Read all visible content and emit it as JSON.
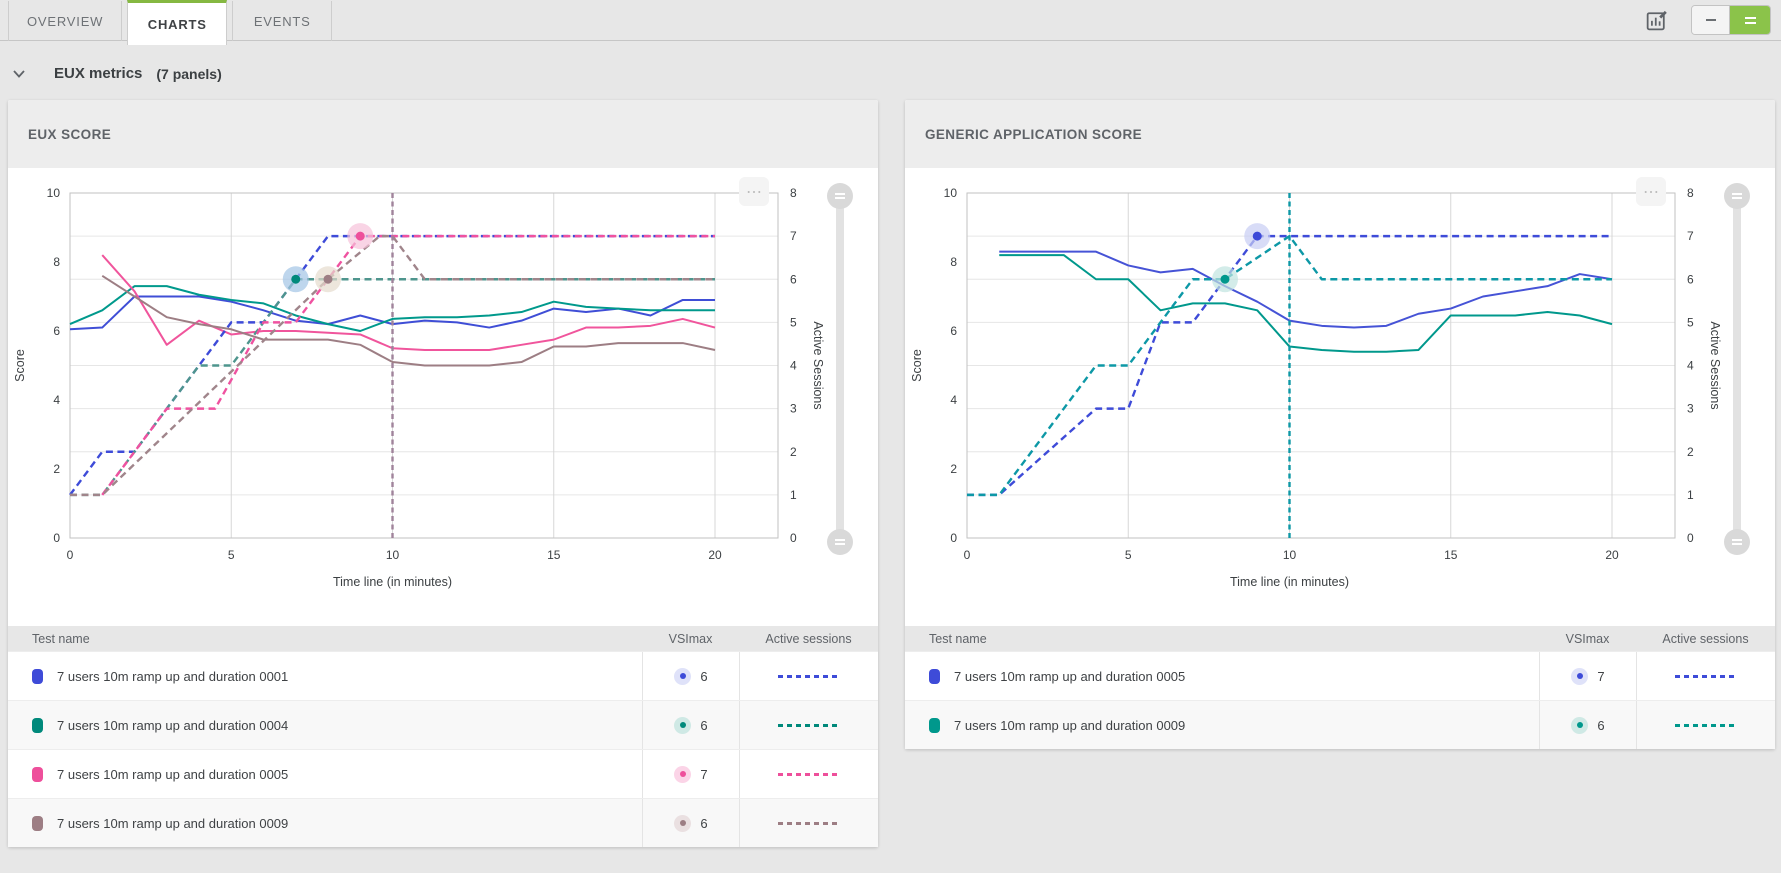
{
  "tabs": [
    {
      "label": "OVERVIEW",
      "active": false
    },
    {
      "label": "CHARTS",
      "active": true
    },
    {
      "label": "EVENTS",
      "active": false
    }
  ],
  "toolbar": {
    "icons": {
      "edit_charts": "chart-edit-icon",
      "compact_view": "minus-icon",
      "expanded_view": "equals-icon"
    }
  },
  "icons": {
    "section_chevron": "chevron-down-icon",
    "panel_menu": "ellipsis-icon",
    "panel_menu_glyph": "⋯",
    "slider_handle": "grip-icon"
  },
  "section": {
    "title": "EUX metrics",
    "count": "(7 panels)"
  },
  "colors": {
    "accent_green": "#8bc34a",
    "tab_green": "#85b841",
    "page_bg": "#e7e7e7",
    "panel_header_bg": "#ededed",
    "blue": "#3f4ed6",
    "teal": "#00897b",
    "pink": "#ee4f9b",
    "mauve": "#9d7e84"
  },
  "panels": [
    {
      "title": "EUX SCORE",
      "table": {
        "headers": {
          "name": "Test name",
          "vsimax": "VSImax",
          "sessions": "Active sessions"
        },
        "rows": [
          {
            "name": "7 users 10m ramp up and duration 0001",
            "color": "#3e4bd8",
            "tint": "#dfe2f9",
            "vsimax": "6"
          },
          {
            "name": "7 users 10m ramp up and duration 0004",
            "color": "#00897b",
            "tint": "#cfe9e5",
            "vsimax": "6"
          },
          {
            "name": "7 users 10m ramp up and duration 0005",
            "color": "#ee4f9b",
            "tint": "#fbd4e7",
            "vsimax": "7"
          },
          {
            "name": "7 users 10m ramp up and duration 0009",
            "color": "#9d7e84",
            "tint": "#eae0e1",
            "vsimax": "6"
          }
        ]
      }
    },
    {
      "title": "GENERIC APPLICATION SCORE",
      "table": {
        "headers": {
          "name": "Test name",
          "vsimax": "VSImax",
          "sessions": "Active sessions"
        },
        "rows": [
          {
            "name": "7 users 10m ramp up and duration 0005",
            "color": "#3e4bd8",
            "tint": "#dfe2f9",
            "vsimax": "7"
          },
          {
            "name": "7 users 10m ramp up and duration 0009",
            "color": "#00988c",
            "tint": "#cfe9e5",
            "vsimax": "6"
          }
        ]
      }
    }
  ],
  "chart_data": [
    {
      "type": "line",
      "title": "EUX SCORE",
      "xlabel": "Time line (in minutes)",
      "ylabel": "Score",
      "y2label": "Active Sessions",
      "xticks": [
        0,
        5,
        10,
        15,
        20
      ],
      "yticks": [
        0,
        2,
        4,
        6,
        8,
        10
      ],
      "y2ticks": [
        0,
        1,
        2,
        3,
        4,
        5,
        6,
        7,
        8
      ],
      "xlim": [
        0,
        21.9
      ],
      "ylim": [
        0,
        10
      ],
      "y2lim": [
        0,
        8
      ],
      "grid": true,
      "vline": {
        "x": 10,
        "color": "#a0839b"
      },
      "series": [
        {
          "name": "7 users 10m ramp up and duration 0001 score",
          "axis": "y1",
          "dash": false,
          "color": "#3f4ed6",
          "x": [
            0,
            1,
            2,
            3,
            4,
            5,
            6,
            7,
            8,
            9,
            10,
            11,
            12,
            13,
            14,
            15,
            16,
            17,
            18,
            19,
            20
          ],
          "y": [
            6.05,
            6.1,
            7.0,
            7.0,
            7.0,
            6.85,
            6.6,
            6.3,
            6.2,
            6.45,
            6.2,
            6.3,
            6.25,
            6.1,
            6.3,
            6.65,
            6.55,
            6.65,
            6.45,
            6.9,
            6.9
          ]
        },
        {
          "name": "7 users 10m ramp up and duration 0004 score",
          "axis": "y1",
          "dash": false,
          "color": "#00998c",
          "x": [
            0,
            1,
            2,
            3,
            4,
            5,
            6,
            7,
            8,
            9,
            10,
            11,
            12,
            13,
            14,
            15,
            16,
            17,
            18,
            19,
            20
          ],
          "y": [
            6.2,
            6.6,
            7.3,
            7.3,
            7.05,
            6.9,
            6.8,
            6.45,
            6.2,
            6.0,
            6.35,
            6.4,
            6.4,
            6.45,
            6.55,
            6.85,
            6.7,
            6.65,
            6.6,
            6.6,
            6.6
          ]
        },
        {
          "name": "7 users 10m ramp up and duration 0005 score",
          "axis": "y1",
          "dash": false,
          "color": "#f0559c",
          "x": [
            1,
            2,
            3,
            4,
            5,
            6,
            7,
            8,
            9,
            10,
            11,
            12,
            13,
            14,
            15,
            16,
            17,
            18,
            19,
            20
          ],
          "y": [
            8.2,
            7.15,
            5.6,
            6.3,
            5.9,
            6.0,
            6.0,
            5.95,
            5.9,
            5.5,
            5.45,
            5.45,
            5.45,
            5.6,
            5.75,
            6.1,
            6.1,
            6.15,
            6.35,
            6.1
          ]
        },
        {
          "name": "7 users 10m ramp up and duration 0009 score",
          "axis": "y1",
          "dash": false,
          "color": "#9d7e84",
          "x": [
            1,
            2,
            3,
            4,
            5,
            6,
            7,
            8,
            9,
            10,
            11,
            12,
            13,
            14,
            15,
            16,
            17,
            18,
            19,
            20
          ],
          "y": [
            7.6,
            7.0,
            6.4,
            6.2,
            6.05,
            5.75,
            5.75,
            5.75,
            5.6,
            5.1,
            5.0,
            5.0,
            5.0,
            5.1,
            5.55,
            5.55,
            5.65,
            5.65,
            5.65,
            5.45
          ]
        },
        {
          "name": "0001 active sessions",
          "axis": "y2",
          "dash": true,
          "color": "#3e4bd8",
          "x": [
            0,
            1,
            2,
            5,
            6,
            8,
            20
          ],
          "y": [
            1,
            2,
            2,
            5,
            5,
            7,
            7
          ]
        },
        {
          "name": "0004 active sessions",
          "axis": "y2",
          "dash": true,
          "color": "#4e958d",
          "x": [
            0,
            1,
            4,
            5,
            7,
            20
          ],
          "y": [
            1,
            1,
            4,
            4,
            6,
            6
          ]
        },
        {
          "name": "0005 active sessions",
          "axis": "y2",
          "dash": true,
          "color": "#ef52a0",
          "x": [
            1,
            2,
            3,
            4.5,
            6,
            7,
            9,
            20
          ],
          "y": [
            1,
            2,
            3,
            3,
            5,
            5,
            7,
            7
          ]
        },
        {
          "name": "0009 active sessions",
          "axis": "y2",
          "dash": true,
          "color": "#a0858b",
          "x": [
            0,
            1,
            8,
            9.6,
            10,
            11,
            20
          ],
          "y": [
            1,
            1,
            6,
            7,
            7,
            6,
            6
          ]
        }
      ],
      "markers": [
        {
          "x": 7,
          "y2": 6,
          "dot": "#00897b",
          "halo": "#a2c4e6"
        },
        {
          "x": 8,
          "y2": 6,
          "dot": "#9d7e84",
          "halo": "#e6dbcd"
        },
        {
          "x": 9,
          "y2": 7,
          "dot": "#ee4f9b",
          "halo": "#f6c2da"
        }
      ]
    },
    {
      "type": "line",
      "title": "GENERIC APPLICATION SCORE",
      "xlabel": "Time line (in minutes)",
      "ylabel": "Score",
      "y2label": "Active Sessions",
      "xticks": [
        0,
        5,
        10,
        15,
        20
      ],
      "yticks": [
        0,
        2,
        4,
        6,
        8,
        10
      ],
      "y2ticks": [
        0,
        1,
        2,
        3,
        4,
        5,
        6,
        7,
        8
      ],
      "xlim": [
        0,
        21.9
      ],
      "ylim": [
        0,
        10
      ],
      "y2lim": [
        0,
        8
      ],
      "grid": true,
      "vline": {
        "x": 10,
        "color": "#0d98a6"
      },
      "series": [
        {
          "name": "7 users 10m ramp up and duration 0005 score",
          "axis": "y1",
          "dash": false,
          "color": "#4653d6",
          "x": [
            1,
            2,
            3,
            4,
            5,
            6,
            7,
            8,
            9,
            10,
            11,
            12,
            13,
            14,
            15,
            16,
            17,
            18,
            19,
            20
          ],
          "y": [
            8.3,
            8.3,
            8.3,
            8.3,
            7.9,
            7.7,
            7.8,
            7.3,
            6.85,
            6.3,
            6.15,
            6.1,
            6.15,
            6.5,
            6.65,
            7.0,
            7.15,
            7.3,
            7.65,
            7.5
          ]
        },
        {
          "name": "7 users 10m ramp up and duration 0009 score",
          "axis": "y1",
          "dash": false,
          "color": "#00988c",
          "x": [
            1,
            2,
            3,
            4,
            5,
            6,
            7,
            8,
            9,
            10,
            11,
            12,
            13,
            14,
            15,
            16,
            17,
            18,
            19,
            20
          ],
          "y": [
            8.2,
            8.2,
            8.2,
            7.5,
            7.5,
            6.6,
            6.8,
            6.8,
            6.6,
            5.55,
            5.45,
            5.4,
            5.4,
            5.45,
            6.45,
            6.45,
            6.45,
            6.55,
            6.45,
            6.2
          ]
        },
        {
          "name": "0005 active sessions",
          "axis": "y2",
          "dash": true,
          "color": "#3e4bd8",
          "x": [
            0,
            1,
            4,
            5,
            6,
            7,
            9,
            20
          ],
          "y": [
            1,
            1,
            3,
            3,
            5,
            5,
            7,
            7
          ]
        },
        {
          "name": "0009 active sessions",
          "axis": "y2",
          "dash": true,
          "color": "#0d98a6",
          "x": [
            0,
            1,
            4,
            5,
            7,
            8,
            10,
            11,
            20
          ],
          "y": [
            1,
            1,
            4,
            4,
            6,
            6,
            7,
            6,
            6
          ]
        }
      ],
      "markers": [
        {
          "x": 8,
          "y2": 6,
          "dot": "#00988c",
          "halo": "#c0e4df"
        },
        {
          "x": 9,
          "y2": 7,
          "dot": "#3e4bd8",
          "halo": "#c8cdf4"
        }
      ]
    }
  ]
}
